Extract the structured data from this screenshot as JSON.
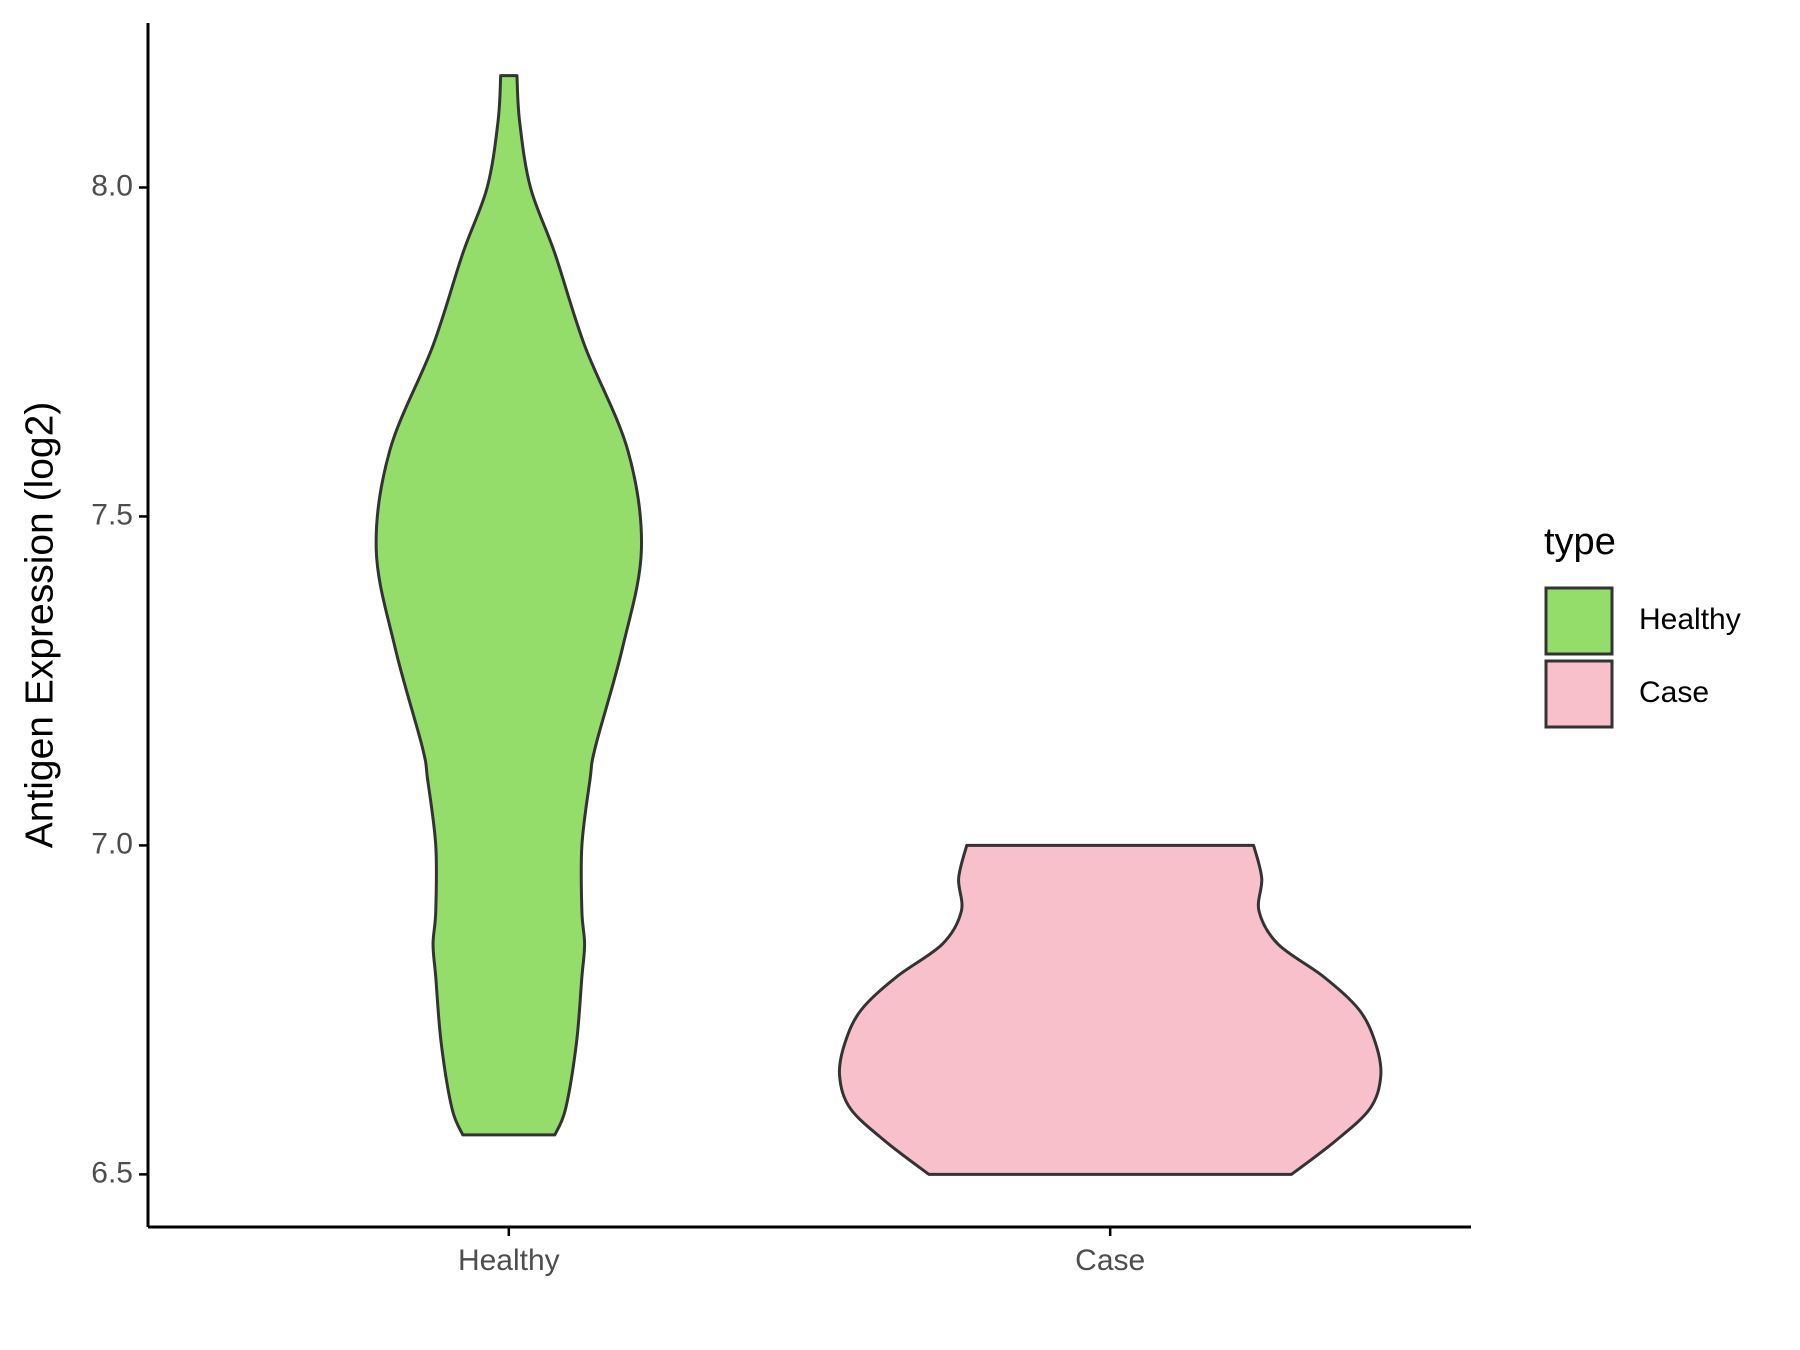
{
  "chart_data": {
    "type": "violin",
    "y_label": "Antigen Expression (log2)",
    "categories": [
      "Healthy",
      "Case"
    ],
    "series": [
      {
        "name": "Healthy",
        "color": "#94dd6a",
        "y": [
          6.56,
          6.6,
          6.7,
          6.8,
          6.85,
          6.9,
          7.0,
          7.1,
          7.15,
          7.3,
          7.45,
          7.6,
          7.76,
          7.9,
          8.0,
          8.1,
          8.17
        ],
        "width": [
          0.17,
          0.21,
          0.25,
          0.27,
          0.28,
          0.27,
          0.27,
          0.3,
          0.32,
          0.42,
          0.49,
          0.44,
          0.28,
          0.17,
          0.08,
          0.04,
          0.03
        ]
      },
      {
        "name": "Case",
        "color": "#f8c0cb",
        "y": [
          6.5,
          6.55,
          6.6,
          6.65,
          6.7,
          6.75,
          6.8,
          6.85,
          6.9,
          6.95,
          7.0
        ],
        "width": [
          0.67,
          0.83,
          0.96,
          1.0,
          0.98,
          0.92,
          0.79,
          0.62,
          0.55,
          0.56,
          0.53
        ]
      }
    ],
    "ylim": [
      6.42,
      8.25
    ],
    "yticks": [
      {
        "value": 6.5,
        "label": "6.5"
      },
      {
        "value": 7,
        "label": "7.0"
      },
      {
        "value": 7.5,
        "label": "7.5"
      },
      {
        "value": 8,
        "label": "8.0"
      }
    ],
    "legend_title": "type",
    "legend_position": "right"
  }
}
